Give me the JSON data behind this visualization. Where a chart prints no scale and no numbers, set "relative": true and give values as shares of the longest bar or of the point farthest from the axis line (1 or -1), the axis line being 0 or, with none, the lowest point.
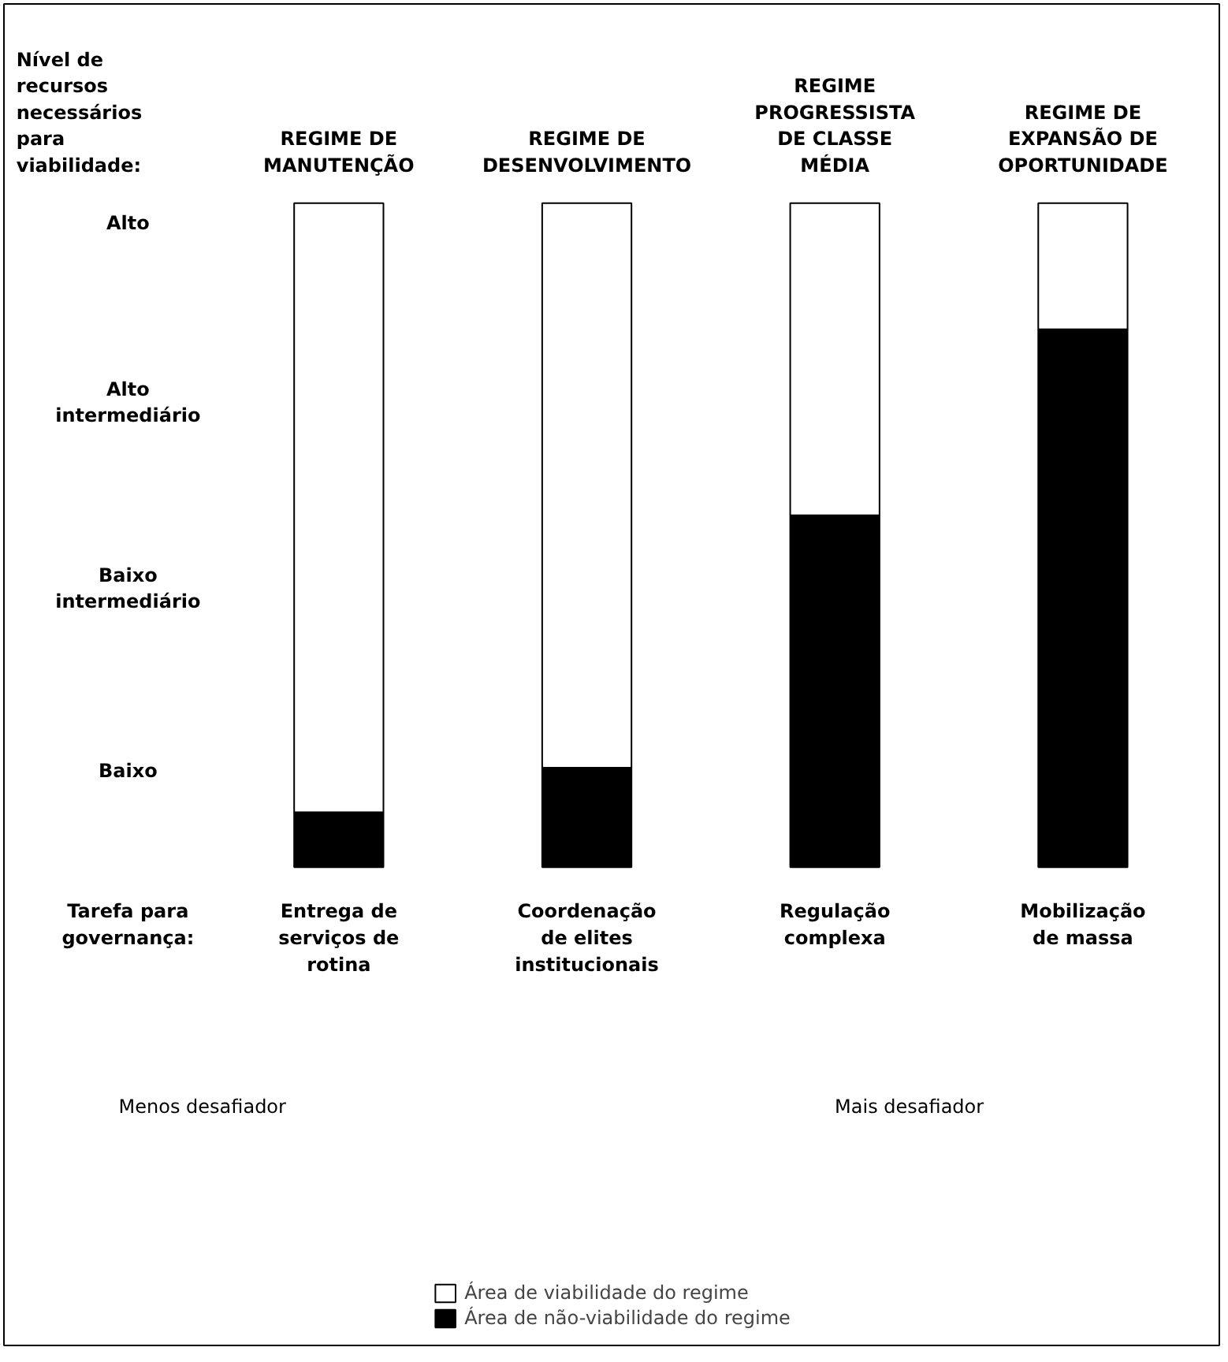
{
  "chart_data": {
    "type": "bar",
    "stacked": true,
    "relative": true,
    "ylabel": "Nível de recursos necessários para viabilidade:",
    "categories": [
      "REGIME DE MANUTENÇÃO",
      "REGIME DE DESENVOLVIMENTO",
      "REGIME PROGRESSISTA DE CLASSE MÉDIA",
      "REGIME DE EXPANSÃO DE OPORTUNIDADE"
    ],
    "series": [
      {
        "name": "Área de não-viabilidade do regime",
        "color": "#000000",
        "values": [
          0.083,
          0.15,
          0.53,
          0.81
        ]
      },
      {
        "name": "Área de viabilidade do regime",
        "color": "#ffffff",
        "values": [
          0.917,
          0.85,
          0.47,
          0.19
        ]
      }
    ],
    "annotations": [
      "Alto",
      "Alto intermediário",
      "Baixo intermediário",
      "Baixo",
      "Tarefa para governança:",
      "Menos desafiador",
      "Mais desafiador",
      "Entrega de serviços de rotina",
      "Coordenação de elites institucionais",
      "Regulação complexa",
      "Mobilização de massa"
    ],
    "legend": "bottom"
  }
}
